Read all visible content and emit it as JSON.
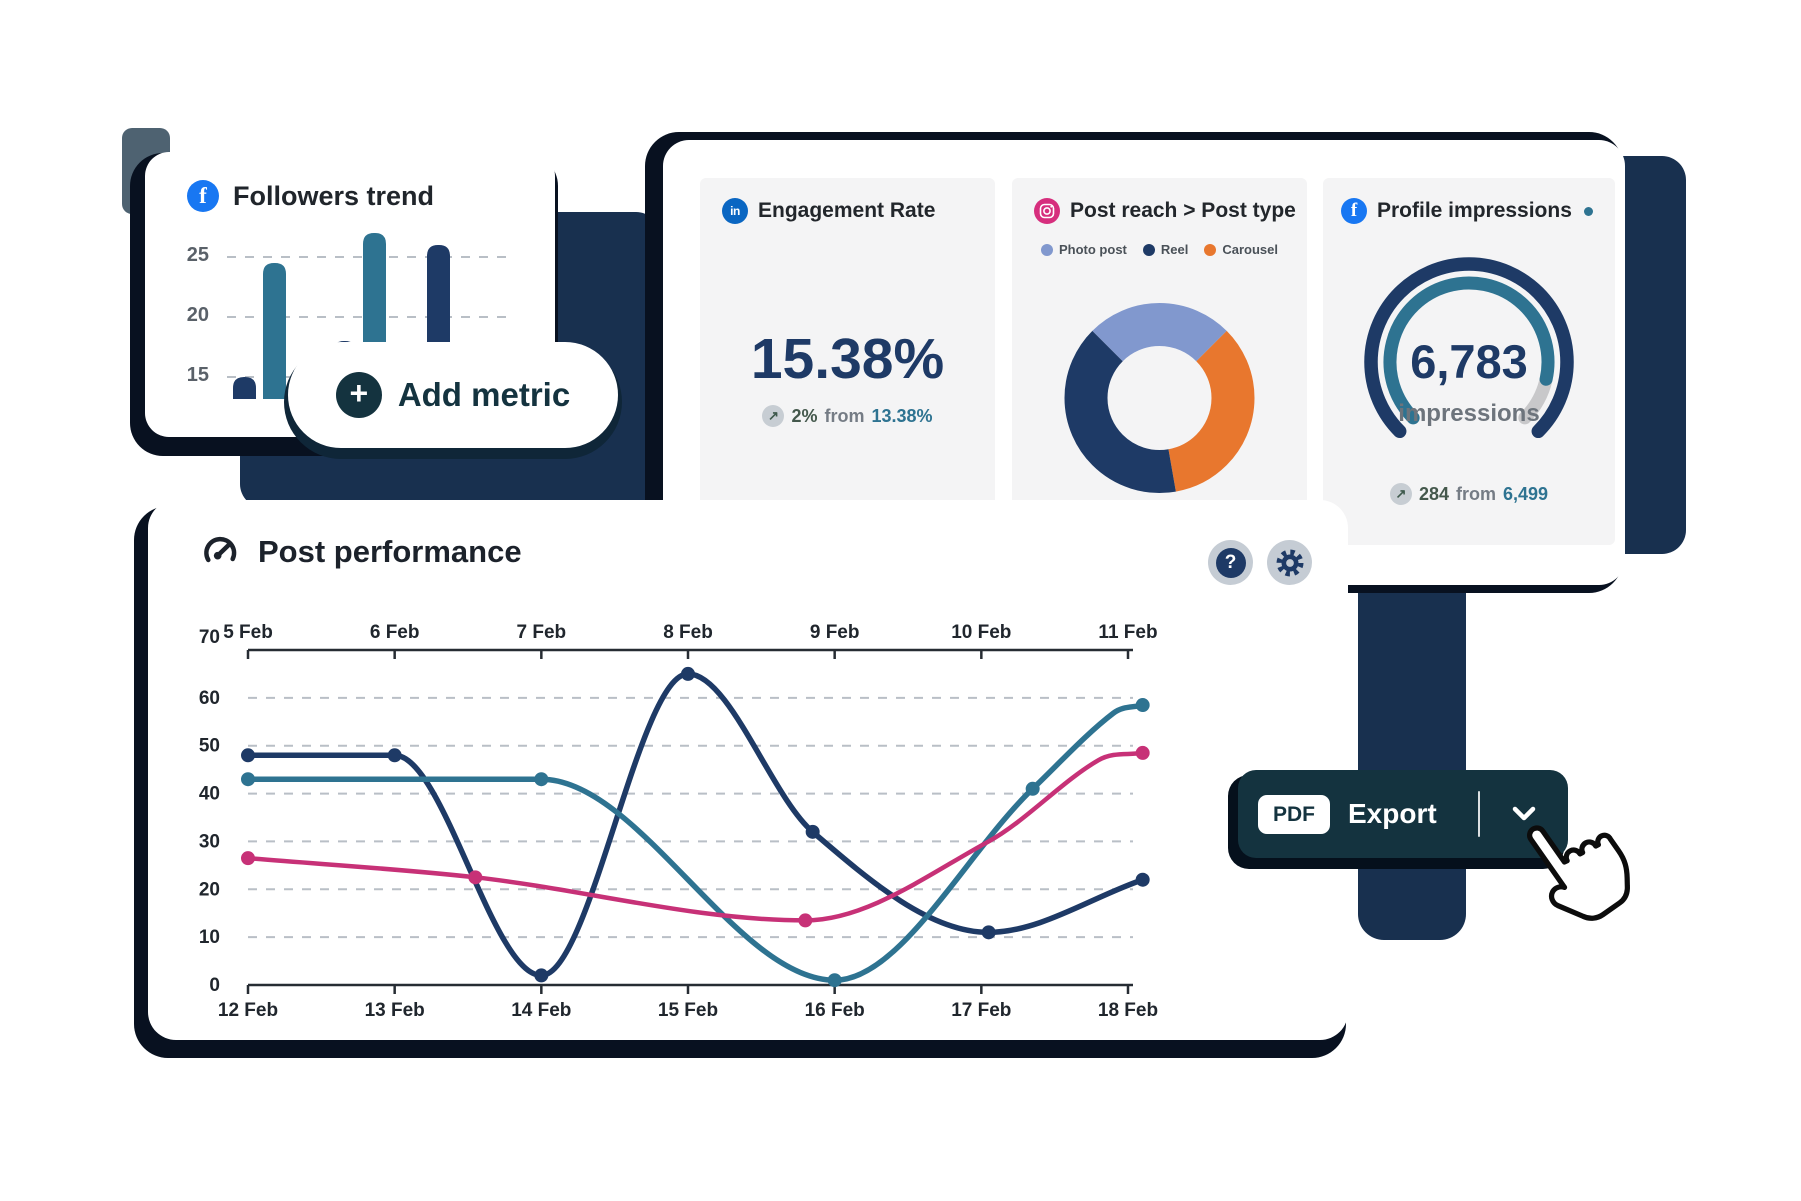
{
  "followers_card": {
    "title": "Followers trend"
  },
  "add_metric": {
    "label": "Add metric",
    "plus": "+"
  },
  "engagement_card": {
    "title": "Engagement Rate",
    "value": "15.38%",
    "delta_arrow": "↗",
    "delta": "2%",
    "from_word": "from",
    "previous": "13.38%"
  },
  "post_reach_card": {
    "title": "Post reach > Post type"
  },
  "impressions_card": {
    "title": "Profile impressions",
    "value": "6,783",
    "unit": "impressions",
    "delta_arrow": "↗",
    "delta": "284",
    "from_word": "from",
    "previous": "6,499"
  },
  "performance_card": {
    "title": "Post performance",
    "help": "?"
  },
  "export": {
    "badge": "PDF",
    "label": "Export"
  },
  "colors": {
    "navy": "#1e3a66",
    "teal": "#2e7391",
    "pink": "#c73177",
    "orange": "#e8772e",
    "periwinkle": "#8198ce",
    "navy_shape": "#18304f",
    "export_bg": "#14333f",
    "facebook_blue": "#1877f2",
    "linkedin_blue": "#0a66c2",
    "instagram_pink": "#d62e7d"
  },
  "chart_data": [
    {
      "id": "followers_trend",
      "type": "bar",
      "title": "Followers trend",
      "categories": [
        "",
        "",
        "",
        "",
        ""
      ],
      "values": [
        15,
        24.5,
        18,
        27,
        26
      ],
      "bar_colors": [
        "#1e3a66",
        "#2e7391",
        "#1e3a66",
        "#2e7391",
        "#1e3a66"
      ],
      "yticks": [
        25,
        20,
        15
      ],
      "ylim": [
        13,
        28
      ],
      "grid": "dashed",
      "xlabel": "",
      "ylabel": ""
    },
    {
      "id": "post_reach_donut",
      "type": "pie",
      "title": "Post reach > Post type",
      "labels": [
        "Photo post",
        "Reel",
        "Carousel"
      ],
      "values_pct": [
        25,
        40.3,
        34.7
      ],
      "colors": [
        "#8198ce",
        "#1e3a66",
        "#e8772e"
      ],
      "legend_position": "top",
      "segments_clockwise_from_minus45deg": [
        {
          "label": "Photo post",
          "deg": 90,
          "color": "#8198ce"
        },
        {
          "label": "Carousel",
          "deg": 125,
          "color": "#e8772e"
        },
        {
          "label": "Reel",
          "deg": 145,
          "color": "#1e3a66"
        }
      ]
    },
    {
      "id": "profile_impressions_gauge",
      "type": "pie",
      "variant": "gauge",
      "title": "Profile impressions",
      "value": 6783,
      "previous": 6499,
      "delta": 284,
      "progress_pct": 88,
      "colors": {
        "outer": "#1e3a66",
        "progress": "#2e7391",
        "remainder": "#c8c8ca"
      }
    },
    {
      "id": "post_performance",
      "type": "line",
      "title": "Post performance",
      "x_top_labels": [
        "5 Feb",
        "6 Feb",
        "7 Feb",
        "8 Feb",
        "9 Feb",
        "10 Feb",
        "11 Feb"
      ],
      "x_bottom_labels": [
        "12 Feb",
        "13 Feb",
        "14 Feb",
        "15 Feb",
        "16 Feb",
        "17 Feb",
        "18 Feb"
      ],
      "yticks": [
        70,
        60,
        50,
        40,
        30,
        20,
        10,
        0
      ],
      "ylim": [
        0,
        70
      ],
      "grid": "dashed",
      "series": [
        {
          "name": "series-navy",
          "color": "#1e3a66",
          "width": 5.5,
          "points": [
            [
              12,
              48
            ],
            [
              13,
              48
            ],
            [
              14,
              2
            ],
            [
              15,
              65
            ],
            [
              15.85,
              32
            ],
            [
              17.05,
              11
            ],
            [
              18.1,
              22
            ]
          ],
          "markers": [
            [
              12,
              48
            ],
            [
              13,
              48
            ],
            [
              14,
              2
            ],
            [
              15,
              65
            ],
            [
              15.85,
              32
            ],
            [
              17.05,
              11
            ],
            [
              18.1,
              22
            ]
          ]
        },
        {
          "name": "series-teal",
          "color": "#2e7391",
          "width": 5.5,
          "points": [
            [
              12,
              43
            ],
            [
              14,
              43
            ],
            [
              16,
              1
            ],
            [
              17.35,
              41
            ],
            [
              17.9,
              56.8
            ],
            [
              18.1,
              58.5
            ]
          ],
          "markers": [
            [
              12,
              43
            ],
            [
              14,
              43
            ],
            [
              16,
              1
            ],
            [
              17.35,
              41
            ],
            [
              18.1,
              58.5
            ]
          ]
        },
        {
          "name": "series-pink",
          "color": "#c73177",
          "width": 4.5,
          "points": [
            [
              12,
              26.5
            ],
            [
              13.55,
              22.5
            ],
            [
              15.8,
              13.5
            ],
            [
              17.05,
              30
            ],
            [
              17.8,
              47
            ],
            [
              18.1,
              48.5
            ]
          ],
          "markers": [
            [
              12,
              26.5
            ],
            [
              13.55,
              22.5
            ],
            [
              15.8,
              13.5
            ],
            [
              18.1,
              48.5
            ]
          ]
        }
      ]
    }
  ]
}
